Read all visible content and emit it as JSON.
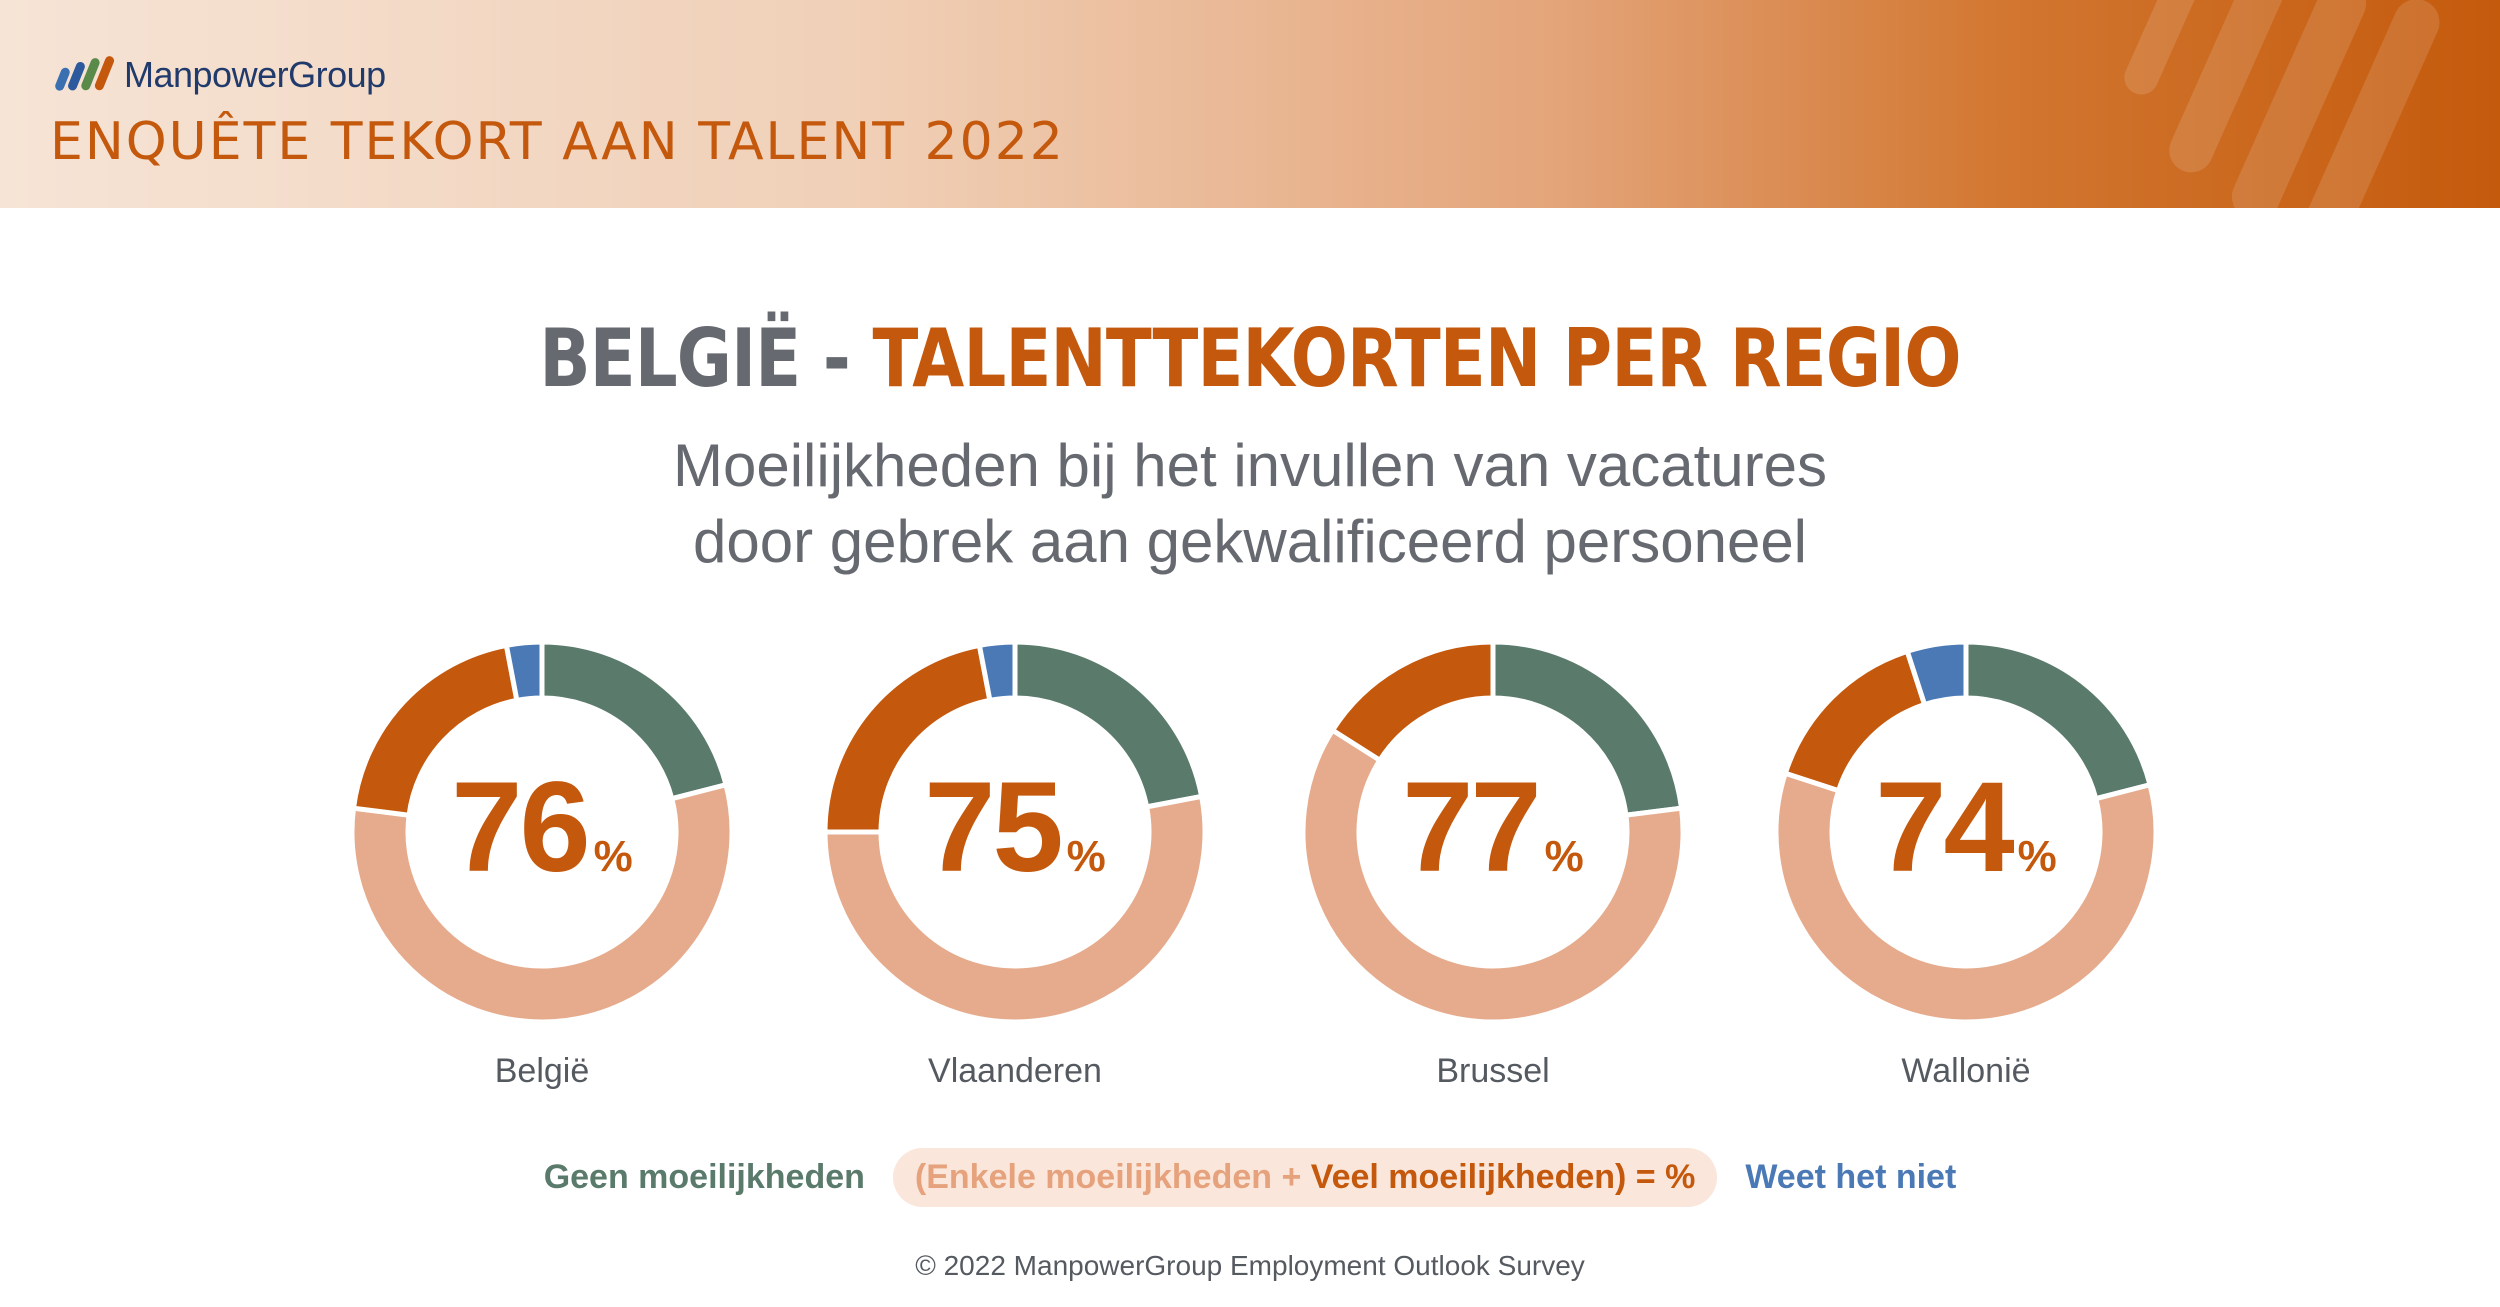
{
  "header": {
    "brand": "ManpowerGroup",
    "title": "ENQUÊTE TEKORT AAN TALENT 2022"
  },
  "heading": {
    "part1": "BELGIË - ",
    "part2": "TALENTTEKORTEN PER REGIO"
  },
  "subtitle": {
    "line1": "Moeilijkheden bij het invullen van vacatures",
    "line2": "door gebrek aan gekwalificeerd personeel"
  },
  "colors": {
    "geen": "#5a7b6c",
    "enkele": "#e6ab8c",
    "veel": "#c4580c",
    "weet": "#4a79b5",
    "accent": "#c4580c"
  },
  "chart_data": {
    "type": "pie",
    "categories": [
      "België",
      "Vlaanderen",
      "Brussel",
      "Wallonië"
    ],
    "totals": [
      "76",
      "75",
      "77",
      "74"
    ],
    "total_unit": "%",
    "series": [
      {
        "name": "Geen moeilijkheden",
        "values": [
          21,
          22,
          23,
          21
        ]
      },
      {
        "name": "Enkele moeilijkheden",
        "values": [
          56,
          53,
          61,
          59
        ]
      },
      {
        "name": "Veel moeilijkheden",
        "values": [
          20,
          22,
          16,
          15
        ]
      },
      {
        "name": "Weet het niet",
        "values": [
          3,
          3,
          0,
          5
        ]
      }
    ]
  },
  "legend": {
    "geen": "Geen moeilijkheden",
    "enkele": "(Enkele moeilijkheden + ",
    "veel": "Veel moeilijkheden) = %",
    "weet": "Weet het niet"
  },
  "footer": "© 2022 ManpowerGroup Employment Outlook Survey"
}
